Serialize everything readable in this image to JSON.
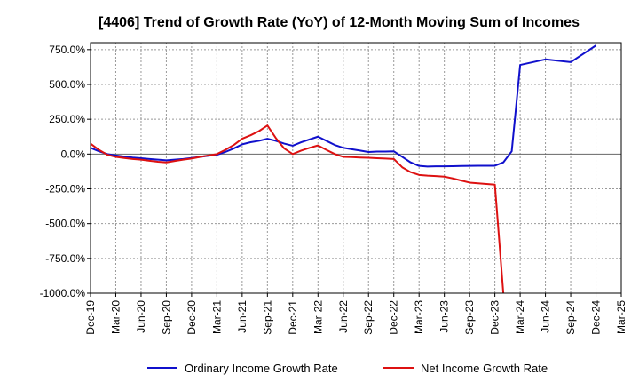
{
  "colors": {
    "ordinary": "#1010cc",
    "net": "#dd1111",
    "grid": "#999999",
    "axis": "#000000",
    "zero_line": "#666666"
  },
  "chart_data": {
    "type": "line",
    "title": "[4406]  Trend of Growth Rate (YoY) of 12-Month Moving Sum of Incomes",
    "xlabel": "",
    "ylabel": "",
    "ylim": [
      -1000,
      800
    ],
    "yticks": [
      750,
      500,
      250,
      0,
      -250,
      -500,
      -750,
      -1000
    ],
    "ytick_labels": [
      "750.0%",
      "500.0%",
      "250.0%",
      "0.0%",
      "-250.0%",
      "-500.0%",
      "-750.0%",
      "-1000.0%"
    ],
    "x_categories": [
      "Dec-19",
      "Mar-20",
      "Jun-20",
      "Sep-20",
      "Dec-20",
      "Mar-21",
      "Jun-21",
      "Sep-21",
      "Dec-21",
      "Mar-22",
      "Jun-22",
      "Sep-22",
      "Dec-22",
      "Mar-23",
      "Jun-23",
      "Sep-23",
      "Dec-23",
      "Mar-24",
      "Jun-24",
      "Sep-24",
      "Dec-24",
      "Mar-25"
    ],
    "months_per_category": 3,
    "grid": true,
    "legend_position": "bottom",
    "series": [
      {
        "name": "Ordinary Income Growth Rate",
        "color_key": "ordinary",
        "points": [
          [
            "Dec-19",
            45
          ],
          [
            "Jan-20",
            20
          ],
          [
            "Feb-20",
            0
          ],
          [
            "Mar-20",
            -10
          ],
          [
            "Apr-20",
            -18
          ],
          [
            "May-20",
            -25
          ],
          [
            "Jun-20",
            -30
          ],
          [
            "Jul-20",
            -35
          ],
          [
            "Aug-20",
            -40
          ],
          [
            "Sep-20",
            -45
          ],
          [
            "Oct-20",
            -40
          ],
          [
            "Nov-20",
            -35
          ],
          [
            "Dec-20",
            -28
          ],
          [
            "Jan-21",
            -20
          ],
          [
            "Feb-21",
            -12
          ],
          [
            "Mar-21",
            -5
          ],
          [
            "Apr-21",
            15
          ],
          [
            "May-21",
            40
          ],
          [
            "Jun-21",
            70
          ],
          [
            "Jul-21",
            85
          ],
          [
            "Aug-21",
            95
          ],
          [
            "Sep-21",
            110
          ],
          [
            "Oct-21",
            95
          ],
          [
            "Nov-21",
            75
          ],
          [
            "Dec-21",
            60
          ],
          [
            "Jan-22",
            85
          ],
          [
            "Feb-22",
            105
          ],
          [
            "Mar-22",
            125
          ],
          [
            "Apr-22",
            95
          ],
          [
            "May-22",
            65
          ],
          [
            "Jun-22",
            45
          ],
          [
            "Jul-22",
            35
          ],
          [
            "Aug-22",
            25
          ],
          [
            "Sep-22",
            15
          ],
          [
            "Oct-22",
            18
          ],
          [
            "Nov-22",
            18
          ],
          [
            "Dec-22",
            20
          ],
          [
            "Jan-23",
            -20
          ],
          [
            "Feb-23",
            -60
          ],
          [
            "Mar-23",
            -85
          ],
          [
            "Apr-23",
            -90
          ],
          [
            "May-23",
            -88
          ],
          [
            "Jun-23",
            -88
          ],
          [
            "Jul-23",
            -87
          ],
          [
            "Aug-23",
            -86
          ],
          [
            "Sep-23",
            -85
          ],
          [
            "Oct-23",
            -84
          ],
          [
            "Nov-23",
            -84
          ],
          [
            "Dec-23",
            -84
          ],
          [
            "Jan-24",
            -60
          ],
          [
            "Feb-24",
            20
          ],
          [
            "Mar-24",
            640
          ],
          [
            "Jun-24",
            680
          ],
          [
            "Sep-24",
            660
          ],
          [
            "Dec-24",
            780
          ]
        ]
      },
      {
        "name": "Net Income Growth Rate",
        "color_key": "net",
        "points": [
          [
            "Dec-19",
            75
          ],
          [
            "Jan-20",
            30
          ],
          [
            "Feb-20",
            -5
          ],
          [
            "Mar-20",
            -20
          ],
          [
            "Apr-20",
            -28
          ],
          [
            "May-20",
            -35
          ],
          [
            "Jun-20",
            -40
          ],
          [
            "Jul-20",
            -48
          ],
          [
            "Aug-20",
            -55
          ],
          [
            "Sep-20",
            -60
          ],
          [
            "Oct-20",
            -50
          ],
          [
            "Nov-20",
            -40
          ],
          [
            "Dec-20",
            -32
          ],
          [
            "Jan-21",
            -20
          ],
          [
            "Feb-21",
            -10
          ],
          [
            "Mar-21",
            0
          ],
          [
            "Apr-21",
            30
          ],
          [
            "May-21",
            65
          ],
          [
            "Jun-21",
            110
          ],
          [
            "Jul-21",
            135
          ],
          [
            "Aug-21",
            165
          ],
          [
            "Sep-21",
            205
          ],
          [
            "Oct-21",
            115
          ],
          [
            "Nov-21",
            40
          ],
          [
            "Dec-21",
            0
          ],
          [
            "Jan-22",
            25
          ],
          [
            "Feb-22",
            45
          ],
          [
            "Mar-22",
            62
          ],
          [
            "Apr-22",
            30
          ],
          [
            "May-22",
            0
          ],
          [
            "Jun-22",
            -20
          ],
          [
            "Jul-22",
            -22
          ],
          [
            "Aug-22",
            -25
          ],
          [
            "Sep-22",
            -27
          ],
          [
            "Oct-22",
            -30
          ],
          [
            "Nov-22",
            -32
          ],
          [
            "Dec-22",
            -35
          ],
          [
            "Jan-23",
            -95
          ],
          [
            "Feb-23",
            -130
          ],
          [
            "Mar-23",
            -150
          ],
          [
            "Apr-23",
            -155
          ],
          [
            "May-23",
            -158
          ],
          [
            "Jun-23",
            -162
          ],
          [
            "Jul-23",
            -175
          ],
          [
            "Aug-23",
            -190
          ],
          [
            "Sep-23",
            -205
          ],
          [
            "Oct-23",
            -210
          ],
          [
            "Nov-23",
            -215
          ],
          [
            "Dec-23",
            -220
          ],
          [
            "Jan-24",
            -1000
          ]
        ]
      }
    ]
  }
}
